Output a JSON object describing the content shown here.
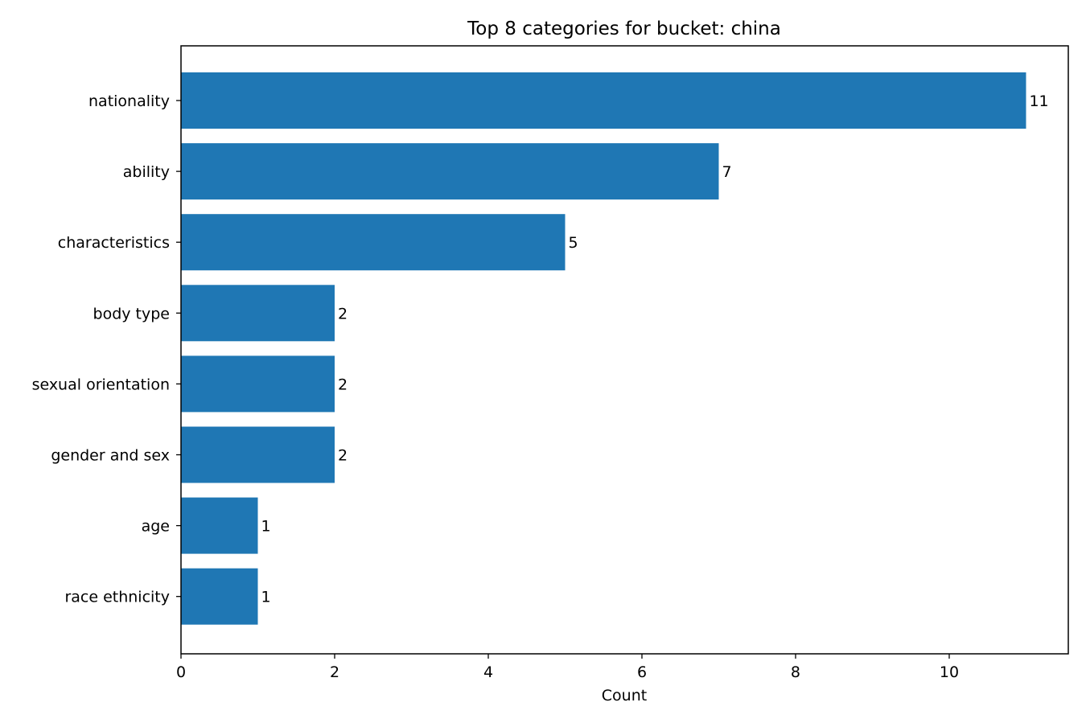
{
  "chart_data": {
    "type": "bar",
    "orientation": "horizontal",
    "title": "Top 8 categories for bucket: china",
    "xlabel": "Count",
    "ylabel": "",
    "categories": [
      "nationality",
      "ability",
      "characteristics",
      "body type",
      "sexual orientation",
      "gender and sex",
      "age",
      "race ethnicity"
    ],
    "values": [
      11,
      7,
      5,
      2,
      2,
      2,
      1,
      1
    ],
    "data_labels": [
      "11",
      "7",
      "5",
      "2",
      "2",
      "2",
      "1",
      "1"
    ],
    "xlim": [
      0,
      11.55
    ],
    "xticks": [
      0,
      2,
      4,
      6,
      8,
      10
    ],
    "xtick_labels": [
      "0",
      "2",
      "4",
      "6",
      "8",
      "10"
    ],
    "grid": false,
    "legend": "none",
    "bar_color": "#1f77b4"
  }
}
